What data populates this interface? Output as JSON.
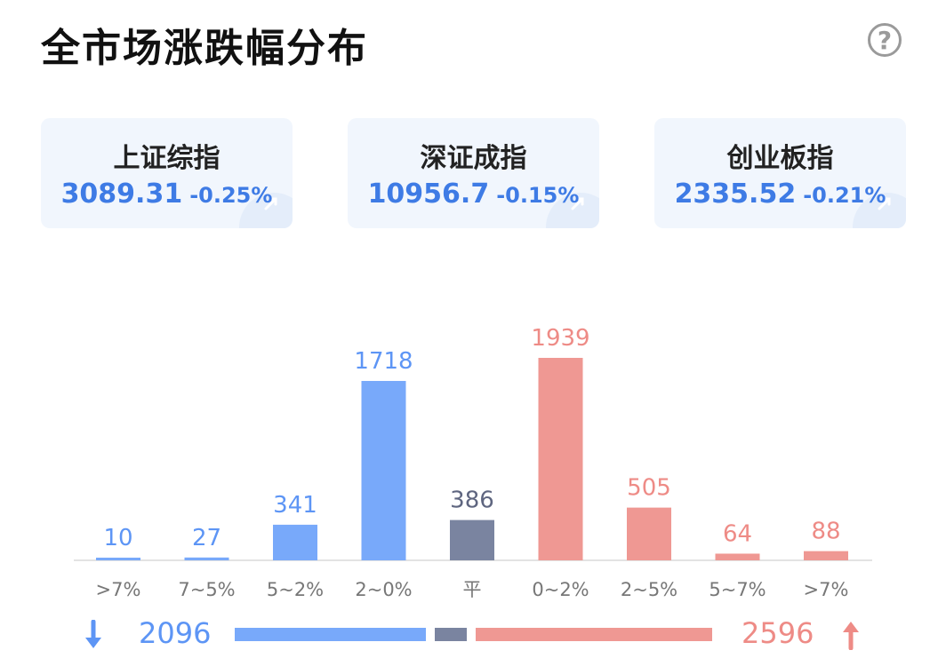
{
  "title": "全市场涨跌幅分布",
  "help_icon": "?",
  "indices": [
    {
      "name": "上证综指",
      "price": "3089.31",
      "change": "-0.25%"
    },
    {
      "name": "深证成指",
      "price": "10956.7",
      "change": "-0.15%"
    },
    {
      "name": "创业板指",
      "price": "2335.52",
      "change": "-0.21%"
    }
  ],
  "colors": {
    "down": "#78a9fa",
    "flat": "#7a84a0",
    "up": "#ef9893",
    "down_text": "#5d95f5",
    "up_text": "#ee8b86"
  },
  "chart_data": {
    "type": "bar",
    "categories": [
      ">7%",
      "7~5%",
      "5~2%",
      "2~0%",
      "平",
      "0~2%",
      "2~5%",
      "5~7%",
      ">7%"
    ],
    "values": [
      10,
      27,
      341,
      1718,
      386,
      1939,
      505,
      64,
      88
    ],
    "groups": [
      "down",
      "down",
      "down",
      "down",
      "flat",
      "up",
      "up",
      "up",
      "up"
    ],
    "title": "全市场涨跌幅分布",
    "xlabel": "",
    "ylabel": ""
  },
  "summary": {
    "down_total": "2096",
    "up_total": "2596",
    "down_icon": "arrow-down-icon",
    "up_icon": "arrow-up-icon"
  }
}
